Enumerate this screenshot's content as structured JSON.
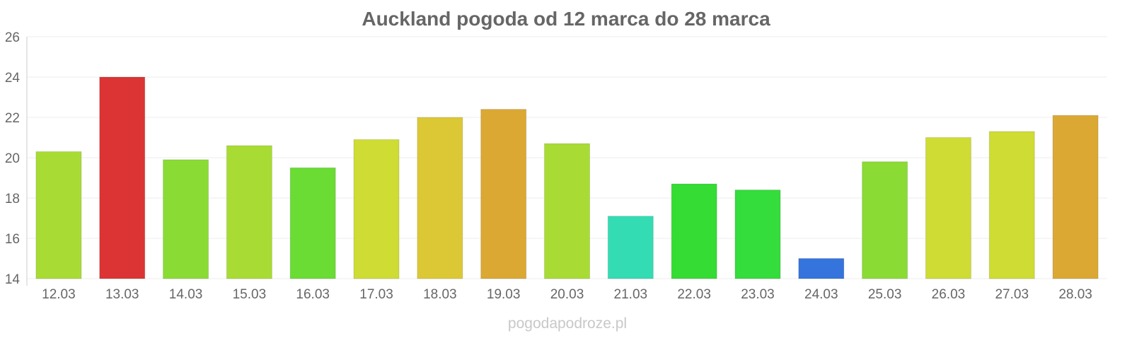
{
  "chart_data": {
    "type": "bar",
    "title": "Auckland pogoda od 12 marca do 28 marca",
    "xlabel": "",
    "ylabel": "",
    "ylim": [
      14,
      26
    ],
    "yticks": [
      "14",
      "16",
      "18",
      "20",
      "22",
      "24",
      "26"
    ],
    "grid": true,
    "categories": [
      "12.03",
      "13.03",
      "14.03",
      "15.03",
      "16.03",
      "17.03",
      "18.03",
      "19.03",
      "20.03",
      "21.03",
      "22.03",
      "23.03",
      "24.03",
      "25.03",
      "26.03",
      "27.03",
      "28.03"
    ],
    "values": [
      20.3,
      24.0,
      19.9,
      20.6,
      19.5,
      20.9,
      22.0,
      22.4,
      20.7,
      17.1,
      18.7,
      18.4,
      15.0,
      19.8,
      21.0,
      21.3,
      22.1
    ],
    "colors": [
      "#a8dc34",
      "#dc3434",
      "#8adc34",
      "#a8dc34",
      "#6adc34",
      "#cedc34",
      "#dcc834",
      "#dca834",
      "#a8dc34",
      "#34dcb4",
      "#34dc34",
      "#34dc3c",
      "#3474dc",
      "#8adc34",
      "#cedc34",
      "#cedc34",
      "#dca834"
    ]
  },
  "watermark": "pogodapodroze.pl",
  "style": {
    "title_color": "#666666",
    "tick_color": "#666666",
    "grid_color": "#eeeeee",
    "axis_color": "#cccccc",
    "watermark_color": "#c8c8c8"
  }
}
